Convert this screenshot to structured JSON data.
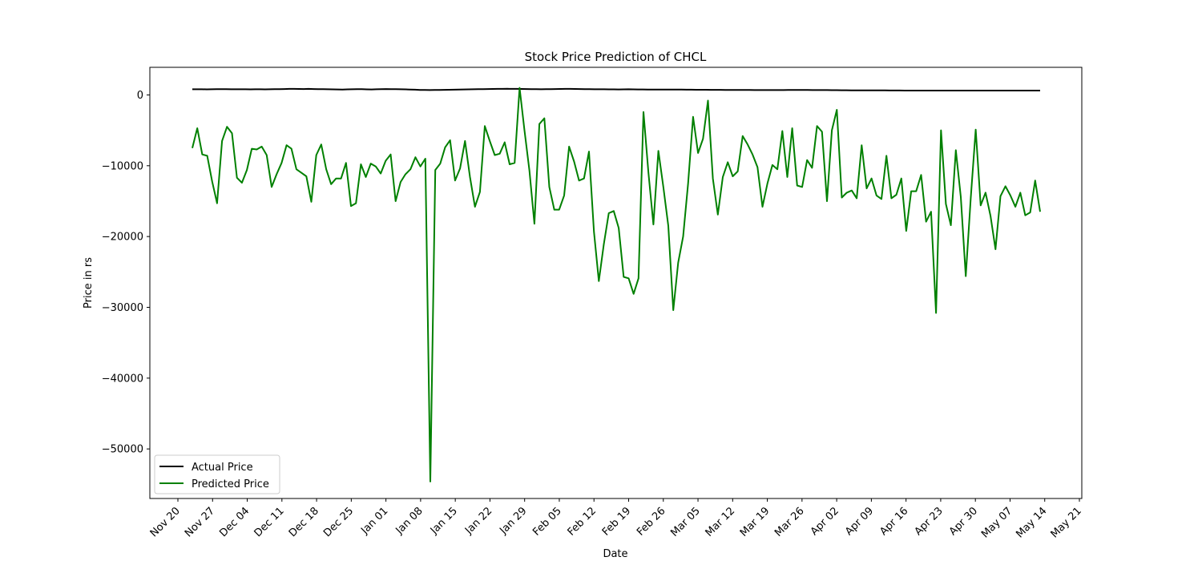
{
  "chart_data": {
    "type": "line",
    "title": "Stock Price Prediction of CHCL",
    "xlabel": "Date",
    "ylabel": "Price in rs",
    "x_ticks": [
      "Nov 20",
      "Nov 27",
      "Dec 04",
      "Dec 11",
      "Dec 18",
      "Dec 25",
      "Jan 01",
      "Jan 08",
      "Jan 15",
      "Jan 22",
      "Jan 29",
      "Feb 05",
      "Feb 12",
      "Feb 19",
      "Feb 26",
      "Mar 05",
      "Mar 12",
      "Mar 19",
      "Mar 26",
      "Apr 02",
      "Apr 09",
      "Apr 16",
      "Apr 23",
      "Apr 30",
      "May 07",
      "May 14",
      "May 21"
    ],
    "y_ticks": [
      0,
      -10000,
      -20000,
      -30000,
      -40000,
      -50000
    ],
    "y_tick_labels": [
      "0",
      "−10000",
      "−20000",
      "−30000",
      "−40000",
      "−50000"
    ],
    "ylim": [
      -57000,
      3900
    ],
    "grid": false,
    "legend_position": "lower-left",
    "series": [
      {
        "name": "Actual Price",
        "color": "#000000",
        "values": [
          800,
          800,
          800,
          790,
          800,
          810,
          820,
          810,
          800,
          800,
          800,
          800,
          790,
          800,
          800,
          790,
          800,
          810,
          820,
          830,
          850,
          860,
          840,
          830,
          850,
          830,
          820,
          810,
          800,
          790,
          780,
          770,
          790,
          800,
          820,
          810,
          790,
          780,
          800,
          820,
          830,
          820,
          810,
          800,
          790,
          760,
          740,
          710,
          700,
          690,
          700,
          710,
          720,
          730,
          740,
          760,
          780,
          790,
          800,
          810,
          820,
          830,
          840,
          850,
          860,
          870,
          860,
          850,
          840,
          830,
          820,
          810,
          800,
          810,
          820,
          830,
          840,
          850,
          850,
          840,
          830,
          820,
          810,
          800,
          800,
          800,
          790,
          790,
          780,
          790,
          800,
          790,
          780,
          780,
          770,
          770,
          760,
          760,
          760,
          760,
          750,
          750,
          740,
          740,
          730,
          730,
          730,
          720,
          720,
          720,
          710,
          710,
          700,
          700,
          700,
          700,
          690,
          690,
          690,
          680,
          690,
          690,
          690,
          700,
          700,
          700,
          700,
          700,
          690,
          690,
          680,
          680,
          670,
          670,
          660,
          660,
          650,
          650,
          650,
          650,
          640,
          640,
          640,
          640,
          630,
          630,
          630,
          620,
          620,
          620,
          620,
          620,
          620,
          620,
          620,
          620,
          620,
          620,
          620,
          620,
          620,
          620,
          620,
          620,
          620,
          620,
          620,
          620,
          620,
          620,
          620,
          620,
          620,
          620,
          620,
          620
        ]
      },
      {
        "name": "Predicted Price",
        "color": "#008000",
        "values": [
          -7500,
          -4700,
          -8400,
          -8600,
          -12200,
          -15300,
          -6500,
          -4500,
          -5400,
          -11700,
          -12400,
          -10600,
          -7600,
          -7700,
          -7300,
          -8500,
          -13000,
          -11200,
          -9600,
          -7100,
          -7600,
          -10500,
          -11000,
          -11500,
          -15100,
          -8500,
          -7000,
          -10500,
          -12600,
          -11800,
          -11800,
          -9600,
          -15700,
          -15300,
          -9800,
          -11600,
          -9700,
          -10100,
          -11100,
          -9300,
          -8400,
          -15000,
          -12300,
          -11200,
          -10500,
          -8800,
          -10100,
          -9000,
          -54600,
          -10600,
          -9700,
          -7400,
          -6400,
          -12100,
          -10400,
          -6500,
          -11600,
          -15800,
          -13700,
          -4400,
          -6500,
          -8500,
          -8300,
          -6700,
          -9800,
          -9600,
          1000,
          -5000,
          -10700,
          -18200,
          -4100,
          -3300,
          -13000,
          -16200,
          -16200,
          -14200,
          -7300,
          -9400,
          -12100,
          -11800,
          -8000,
          -19300,
          -26300,
          -21100,
          -16700,
          -16400,
          -18800,
          -25700,
          -25900,
          -28100,
          -25900,
          -2400,
          -11000,
          -18300,
          -7900,
          -13000,
          -18500,
          -30400,
          -23700,
          -20000,
          -12500,
          -3100,
          -8200,
          -6200,
          -800,
          -11800,
          -16900,
          -11600,
          -9500,
          -11500,
          -10800,
          -5800,
          -7000,
          -8400,
          -10200,
          -15800,
          -12500,
          -9900,
          -10500,
          -5100,
          -11600,
          -4700,
          -12800,
          -13000,
          -9200,
          -10300,
          -4400,
          -5200,
          -15000,
          -5000,
          -2100,
          -14500,
          -13800,
          -13500,
          -14600,
          -7100,
          -13200,
          -11800,
          -14200,
          -14700,
          -8600,
          -14600,
          -14100,
          -11800,
          -19200,
          -13600,
          -13600,
          -11300,
          -17900,
          -16500,
          -30800,
          -5000,
          -15400,
          -18400,
          -7800,
          -14400,
          -25600,
          -14600,
          -4900,
          -15600,
          -13800,
          -17100,
          -21800,
          -14300,
          -12900,
          -14200,
          -15800,
          -13800,
          -17000,
          -16600,
          -12100,
          -16500
        ]
      }
    ]
  }
}
